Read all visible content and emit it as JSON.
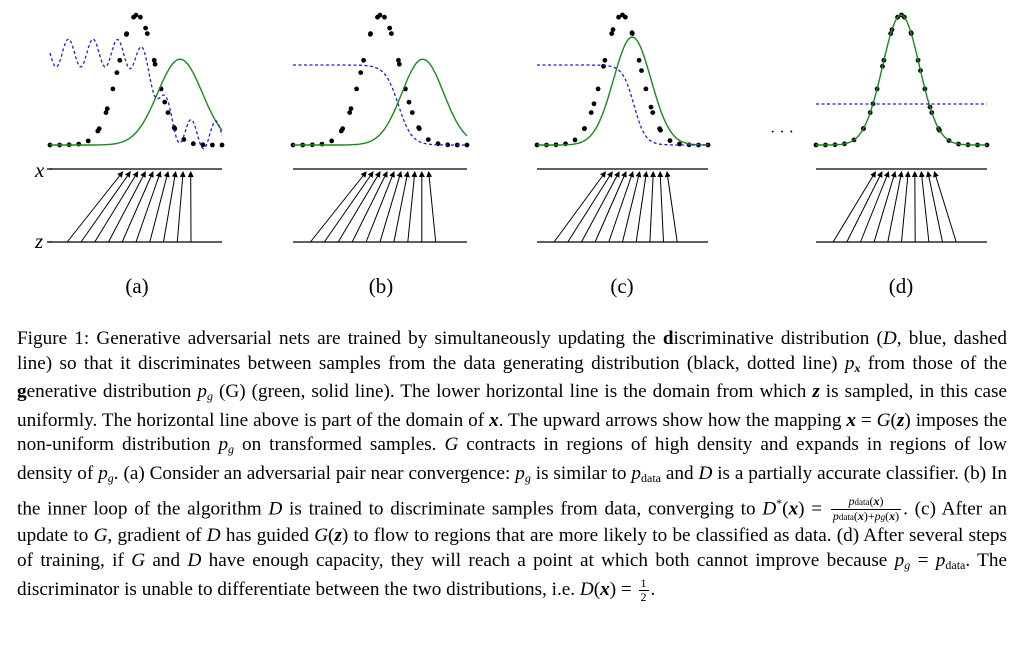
{
  "panels": [
    {
      "label": "(a)",
      "generator_mean": 0.55,
      "discriminator": "noisy_sigmoid",
      "mapping": "a"
    },
    {
      "label": "(b)",
      "generator_mean": 0.55,
      "discriminator": "sigmoid",
      "mapping": "b"
    },
    {
      "label": "(c)",
      "generator_mean": 0.55,
      "discriminator": "sigmoid_late",
      "mapping": "c"
    },
    {
      "label": "(d)",
      "generator_mean": 0.5,
      "discriminator": "flat_half",
      "mapping": "d"
    }
  ],
  "axis_labels": {
    "x": "x",
    "z": "z"
  },
  "ellipsis": "· · ·",
  "colors": {
    "discriminator": "#1f1fd6",
    "generator": "#1a8a1a",
    "data": "#000000"
  },
  "caption": {
    "fig": "Figure 1:",
    "t1": " Generative adversarial nets are trained by simultaneously updating the ",
    "d_bold": "d",
    "t2": "iscriminative distribution (",
    "D": "D",
    "t3": ", blue, dashed line) so that it discriminates between samples from the data generating distribution (black, dotted line) ",
    "p": "p",
    "x_sub": "x",
    "t4": " from those of the ",
    "g_bold": "g",
    "t5": "enerative distribution ",
    "pg": "p",
    "g_sub": "g",
    "t6": " (G) (green, solid line). The lower horizontal line is the domain from which ",
    "z": "z",
    "t7": " is sampled, in this case uniformly. The horizontal line above is part of the domain of ",
    "x": "x",
    "t8": ". The upward arrows show how the mapping ",
    "eq1": "x = G(z)",
    "t9": " imposes the non-uniform distribution ",
    "t10": " on transformed samples. ",
    "G": "G",
    "t11": " contracts in regions of high density and expands in regions of low density of ",
    "t12": ". (a) Consider an adversarial pair near convergence: ",
    "t13": " is similar to ",
    "pdata": "p",
    "data_sub": "data",
    "t14": " and ",
    "t15": " is a partially accurate classifier. (b) In the inner loop of the algorithm ",
    "t16": " is trained to discriminate samples from data, converging to ",
    "dstar": "D*(x) =",
    "frac_num": "p_data(x)",
    "frac_den": "p_data(x)+p_g(x)",
    "t17": ". (c) After an update to ",
    "t18": ", gradient of ",
    "t19": " has guided ",
    "Gz": "G(z)",
    "t20": " to flow to regions that are more likely to be classified as data. (d) After several steps of training, if ",
    "t21": " and ",
    "t22": " have enough capacity, they will reach a point at which both cannot improve because ",
    "eq2": "p_g = p_data",
    "t23": ". The discriminator is unable to differentiate between the two distributions, i.e. ",
    "final": "D(x) = 1/2",
    "t24": "."
  }
}
